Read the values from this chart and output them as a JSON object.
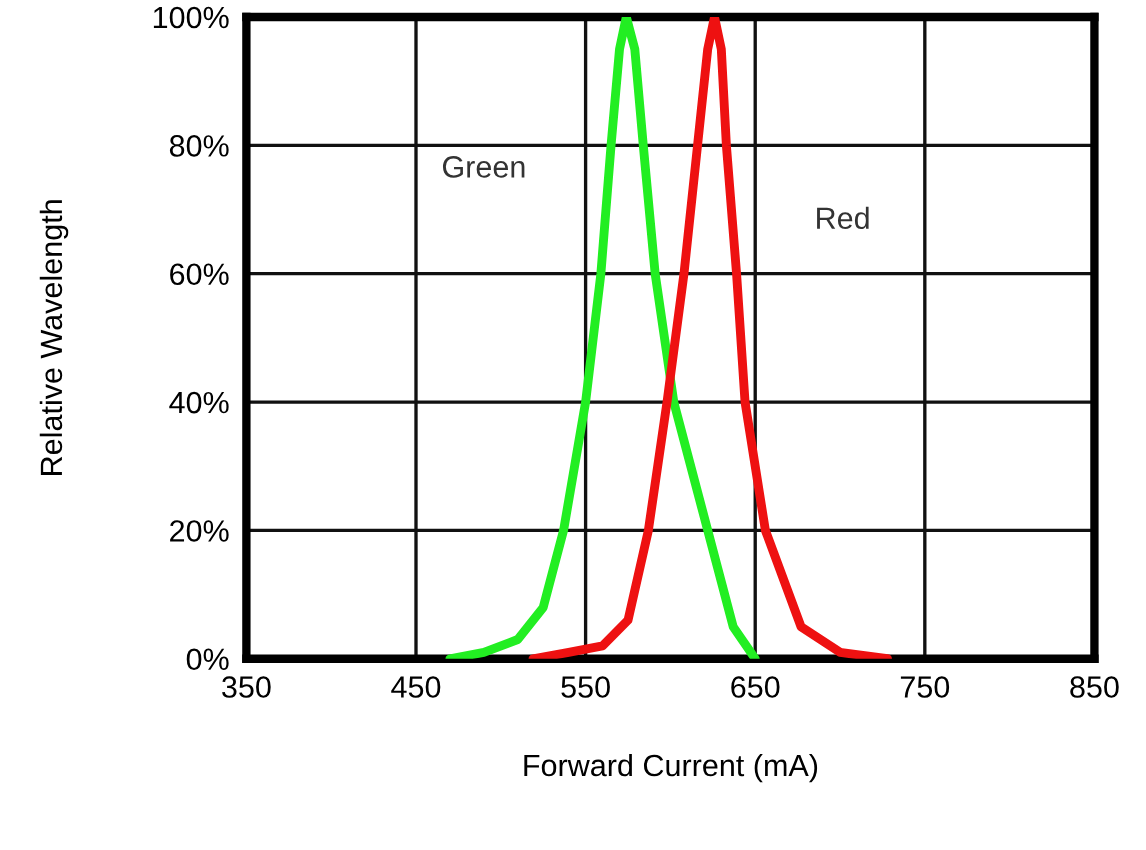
{
  "chart_data": {
    "type": "line",
    "xlabel": "Forward Current (mA)",
    "ylabel": "Relative Wavelength",
    "xlim": [
      350,
      850
    ],
    "xticks": [
      350,
      450,
      550,
      650,
      750,
      850
    ],
    "ylim": [
      0,
      100
    ],
    "yticks": [
      {
        "value": 0,
        "label": "0%"
      },
      {
        "value": 20,
        "label": "20%"
      },
      {
        "value": 40,
        "label": "40%"
      },
      {
        "value": 60,
        "label": "60%"
      },
      {
        "value": 80,
        "label": "80%"
      },
      {
        "value": 100,
        "label": "100%"
      }
    ],
    "grid": true,
    "legend": false,
    "marker": "none",
    "line_style": "solid",
    "series": [
      {
        "name": "Green",
        "color": "#22ee22",
        "x": [
          470,
          490,
          510,
          525,
          537,
          550,
          559,
          565,
          570,
          574,
          579,
          584,
          591,
          602,
          622,
          637,
          650
        ],
        "values": [
          0,
          1,
          3,
          8,
          20,
          40,
          60,
          80,
          95,
          100,
          95,
          80,
          60,
          40,
          20,
          5,
          0
        ]
      },
      {
        "name": "Red",
        "color": "#ee1111",
        "x": [
          519,
          540,
          560,
          575,
          587,
          598,
          608,
          616,
          622,
          626,
          630,
          633,
          639,
          644,
          656,
          677,
          700,
          728
        ],
        "values": [
          0,
          1,
          2,
          6,
          20,
          40,
          60,
          80,
          95,
          100,
          95,
          80,
          60,
          40,
          20,
          5,
          1,
          0
        ]
      }
    ]
  }
}
